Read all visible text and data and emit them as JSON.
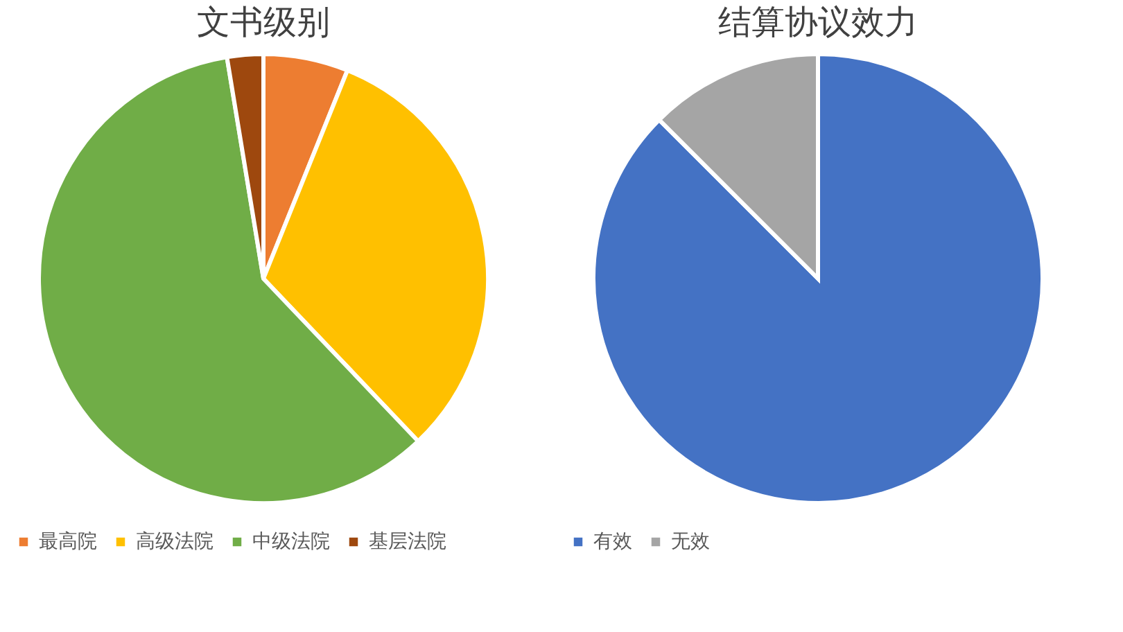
{
  "chart_data": [
    {
      "type": "pie",
      "title": "文书级别",
      "categories": [
        "最高院",
        "高级法院",
        "中级法院",
        "基层法院"
      ],
      "values": [
        6.1,
        31.8,
        59.5,
        2.6
      ],
      "colors": [
        "#ed7d31",
        "#ffc000",
        "#70ad47",
        "#9e480e"
      ],
      "legend": "bottom"
    },
    {
      "type": "pie",
      "title": "结算协议效力",
      "categories": [
        "有效",
        "无效"
      ],
      "values": [
        87.5,
        12.5
      ],
      "colors": [
        "#4472c4",
        "#a5a5a5"
      ],
      "legend": "bottom"
    }
  ]
}
